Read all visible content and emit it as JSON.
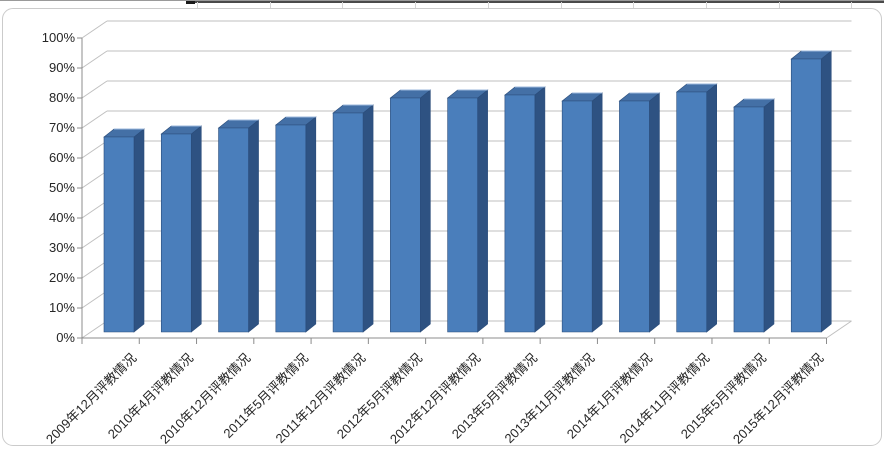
{
  "chart_data": {
    "type": "bar",
    "style": "3d-column",
    "title": "",
    "xlabel": "",
    "ylabel": "",
    "categories": [
      "2009年12月评教情况",
      "2010年4月评教情况",
      "2010年12月评教情况",
      "2011年5月评教情况",
      "2011年12月评教情况",
      "2012年5月评教情况",
      "2012年12月评教情况",
      "2013年5月评教情况",
      "2013年11月评教情况",
      "2014年1月评教情况",
      "2014年11月评教情况",
      "2015年5月评教情况",
      "2015年12月评教情况"
    ],
    "values": [
      65,
      66,
      68,
      69,
      73,
      78,
      78,
      79,
      77,
      77,
      80,
      75,
      91
    ],
    "unit": "%",
    "ylim": [
      0,
      100
    ],
    "y_tick_step": 10,
    "y_tick_labels": [
      "0%",
      "10%",
      "20%",
      "30%",
      "40%",
      "50%",
      "60%",
      "70%",
      "80%",
      "90%",
      "100%"
    ],
    "grid": true,
    "legend": false,
    "colors": {
      "bar_front": "#4A7EBB",
      "bar_side": "#2E5282",
      "bar_top": "#4470A6",
      "bar_top_highlight": "#9DB8DC",
      "bar_outline": "#2A4C7A",
      "gridline": "#BFBFBF",
      "axis": "#8C8C8C",
      "text": "#262626",
      "chart_border": "#CBCBCB"
    }
  }
}
